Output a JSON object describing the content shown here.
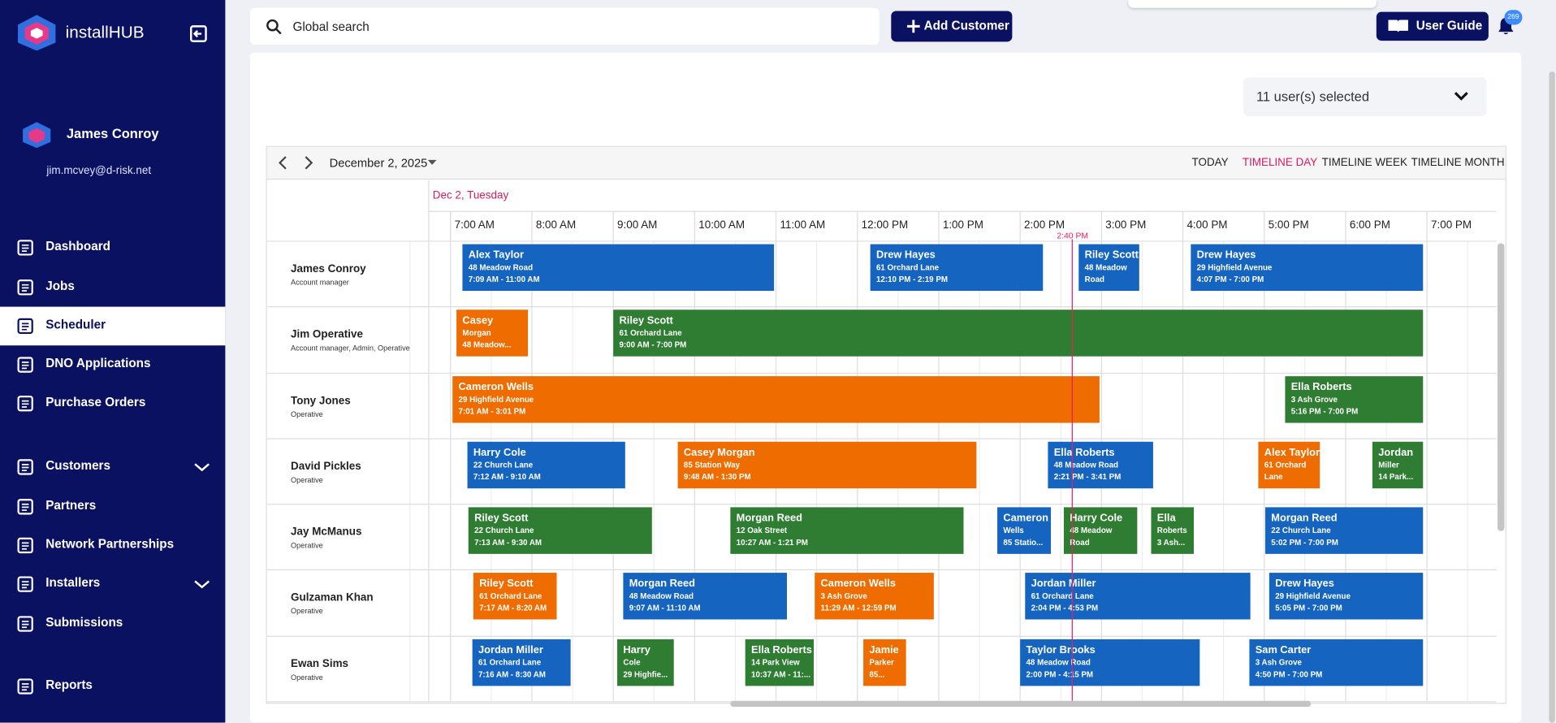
{
  "sidebar": {
    "brand": "installHUB",
    "user": {
      "name": "James Conroy",
      "email": "jim.mcvey@d-risk.net"
    },
    "nav": [
      {
        "label": "Dashboard"
      },
      {
        "label": "Jobs"
      },
      {
        "label": "Scheduler",
        "active": true
      },
      {
        "label": "DNO Applications"
      },
      {
        "label": "Purchase Orders"
      },
      {
        "label": "Customers",
        "expandable": true
      },
      {
        "label": "Partners"
      },
      {
        "label": "Network Partnerships"
      },
      {
        "label": "Installers",
        "expandable": true
      },
      {
        "label": "Submissions"
      },
      {
        "label": "Reports"
      }
    ]
  },
  "topbar": {
    "search_placeholder": "Global search",
    "add_customer": "Add Customer",
    "user_guide": "User Guide",
    "notification_count": 269
  },
  "scheduler": {
    "user_filter": "11 user(s) selected",
    "date": "December 2, 2025",
    "views": [
      {
        "label": "TODAY"
      },
      {
        "label": "TIMELINE DAY",
        "active": true
      },
      {
        "label": "TIMELINE WEEK"
      },
      {
        "label": "TIMELINE MONTH"
      }
    ],
    "day_label": "Dec 2, Tuesday",
    "hours": [
      "7:00 AM",
      "8:00 AM",
      "9:00 AM",
      "10:00 AM",
      "11:00 AM",
      "12:00 PM",
      "1:00 PM",
      "2:00 PM",
      "3:00 PM",
      "4:00 PM",
      "5:00 PM",
      "6:00 PM",
      "7:00 PM"
    ],
    "now_label": "2:40 PM",
    "resources": [
      {
        "name": "James Conroy",
        "role": "Account manager",
        "events": [
          {
            "lines": [
              "Alex Taylor",
              "48 Meadow Road",
              "7:09 AM - 11:00 AM"
            ],
            "color": "#1565c0"
          },
          {
            "lines": [
              "Drew Hayes",
              "61 Orchard Lane",
              "12:10 PM - 2:19 PM"
            ],
            "color": "#1565c0"
          },
          {
            "lines": [
              "Riley Scott",
              "48 Meadow",
              "Road"
            ],
            "color": "#1565c0"
          },
          {
            "lines": [
              "Drew Hayes",
              "29 Highfield Avenue",
              "4:07 PM - 7:00 PM"
            ],
            "color": "#1565c0"
          }
        ]
      },
      {
        "name": "Jim Operative",
        "role": "Account manager, Admin, Operative",
        "events": [
          {
            "lines": [
              "Casey",
              "Morgan",
              "48 Meadow..."
            ],
            "color": "#ef6c00"
          },
          {
            "lines": [
              "Riley Scott",
              "61 Orchard Lane",
              "9:00 AM - 7:00 PM"
            ],
            "color": "#2e7d32"
          }
        ]
      },
      {
        "name": "Tony Jones",
        "role": "Operative",
        "events": [
          {
            "lines": [
              "Cameron Wells",
              "29 Highfield Avenue",
              "7:01 AM - 3:01 PM"
            ],
            "color": "#ef6c00"
          },
          {
            "lines": [
              "Ella Roberts",
              "3 Ash Grove",
              "5:16 PM - 7:00 PM"
            ],
            "color": "#2e7d32"
          }
        ]
      },
      {
        "name": "David Pickles",
        "role": "Operative",
        "events": [
          {
            "lines": [
              "Harry Cole",
              "22 Church Lane",
              "7:12 AM - 9:10 AM"
            ],
            "color": "#1565c0"
          },
          {
            "lines": [
              "Casey Morgan",
              "85 Station Way",
              "9:48 AM - 1:30 PM"
            ],
            "color": "#ef6c00"
          },
          {
            "lines": [
              "Ella Roberts",
              "48 Meadow Road",
              "2:21 PM - 3:41 PM"
            ],
            "color": "#1565c0"
          },
          {
            "lines": [
              "Alex Taylor",
              "61 Orchard",
              "Lane"
            ],
            "color": "#ef6c00"
          },
          {
            "lines": [
              "Jordan",
              "Miller",
              "14 Park..."
            ],
            "color": "#2e7d32"
          }
        ]
      },
      {
        "name": "Jay McManus",
        "role": "Operative",
        "events": [
          {
            "lines": [
              "Riley Scott",
              "22 Church Lane",
              "7:13 AM - 9:30 AM"
            ],
            "color": "#2e7d32"
          },
          {
            "lines": [
              "Morgan Reed",
              "12 Oak Street",
              "10:27 AM - 1:21 PM"
            ],
            "color": "#2e7d32"
          },
          {
            "lines": [
              "Cameron",
              "Wells",
              "85 Statio..."
            ],
            "color": "#1565c0"
          },
          {
            "lines": [
              "Harry Cole",
              "48 Meadow",
              "Road"
            ],
            "color": "#2e7d32"
          },
          {
            "lines": [
              "Ella",
              "Roberts",
              "3 Ash..."
            ],
            "color": "#2e7d32"
          },
          {
            "lines": [
              "Morgan Reed",
              "22 Church Lane",
              "5:02 PM - 7:00 PM"
            ],
            "color": "#1565c0"
          }
        ]
      },
      {
        "name": "Gulzaman Khan",
        "role": "Operative",
        "events": [
          {
            "lines": [
              "Riley Scott",
              "61 Orchard Lane",
              "7:17 AM - 8:20 AM"
            ],
            "color": "#ef6c00"
          },
          {
            "lines": [
              "Morgan Reed",
              "48 Meadow Road",
              "9:07 AM - 11:10 AM"
            ],
            "color": "#1565c0"
          },
          {
            "lines": [
              "Cameron Wells",
              "3 Ash Grove",
              "11:29 AM - 12:59 PM"
            ],
            "color": "#ef6c00"
          },
          {
            "lines": [
              "Jordan Miller",
              "61 Orchard Lane",
              "2:04 PM - 4:53 PM"
            ],
            "color": "#1565c0"
          },
          {
            "lines": [
              "Drew Hayes",
              "29 Highfield Avenue",
              "5:05 PM - 7:00 PM"
            ],
            "color": "#1565c0"
          }
        ]
      },
      {
        "name": "Ewan Sims",
        "role": "Operative",
        "events": [
          {
            "lines": [
              "Jordan Miller",
              "61 Orchard Lane",
              "7:16 AM - 8:30 AM"
            ],
            "color": "#1565c0"
          },
          {
            "lines": [
              "Harry",
              "Cole",
              "29 Highfie..."
            ],
            "color": "#2e7d32"
          },
          {
            "lines": [
              "Ella Roberts",
              "14 Park View",
              "10:37 AM - 11:..."
            ],
            "color": "#2e7d32"
          },
          {
            "lines": [
              "Jamie",
              "Parker",
              "85..."
            ],
            "color": "#ef6c00"
          },
          {
            "lines": [
              "Taylor Brooks",
              "48 Meadow Road",
              "2:00 PM - 4:15 PM"
            ],
            "color": "#1565c0"
          },
          {
            "lines": [
              "Sam Carter",
              "3 Ash Grove",
              "4:50 PM - 7:00 PM"
            ],
            "color": "#1565c0"
          }
        ]
      }
    ]
  }
}
